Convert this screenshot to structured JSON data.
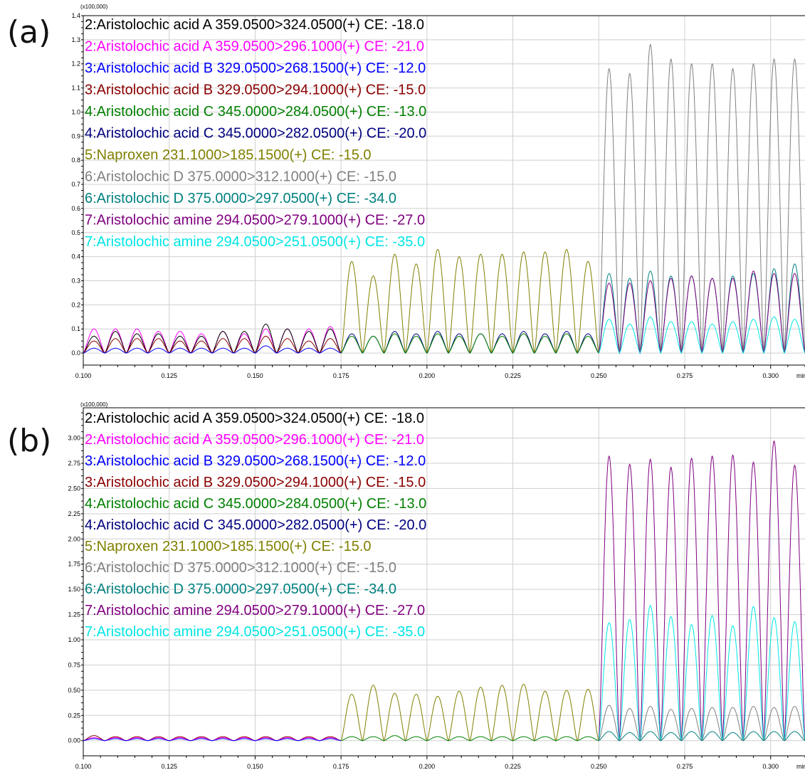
{
  "figure": {
    "panel_labels": [
      "(a)",
      "(b)"
    ],
    "x_unit_label": "min",
    "y_scale_note": "(x100,000)"
  },
  "legend": [
    {
      "id": "aaa-324",
      "label": "2:Aristolochic acid A 359.0500>324.0500(+) CE: -18.0",
      "color": "#000000"
    },
    {
      "id": "aaa-296",
      "label": "2:Aristolochic acid A 359.0500>296.1000(+) CE: -21.0",
      "color": "#ff00ff"
    },
    {
      "id": "aab-268",
      "label": "3:Aristolochic acid B 329.0500>268.1500(+) CE: -12.0",
      "color": "#0000ff"
    },
    {
      "id": "aab-294",
      "label": "3:Aristolochic acid B 329.0500>294.1000(+) CE: -15.0",
      "color": "#8b0000"
    },
    {
      "id": "aac-284",
      "label": "4:Aristolochic acid C 345.0000>284.0500(+) CE: -13.0",
      "color": "#008000"
    },
    {
      "id": "aac-282",
      "label": "4:Aristolochic acid C 345.0000>282.0500(+) CE: -20.0",
      "color": "#000080"
    },
    {
      "id": "nap-185",
      "label": "5:Naproxen 231.1000>185.1500(+) CE: -15.0",
      "color": "#808000"
    },
    {
      "id": "aad-312",
      "label": "6:Aristolochic D 375.0000>312.1000(+) CE: -15.0",
      "color": "#808080"
    },
    {
      "id": "aad-297",
      "label": "6:Aristolochic D 375.0000>297.0500(+) CE: -34.0",
      "color": "#008080"
    },
    {
      "id": "aam-279",
      "label": "7:Aristolochic amine 294.0500>279.1000(+) CE: -27.0",
      "color": "#800080"
    },
    {
      "id": "aam-251",
      "label": "7:Aristolochic amine 294.0500>251.0500(+) CE: -35.0",
      "color": "#00e5e5"
    }
  ],
  "chart_data": [
    {
      "panel": "(a)",
      "type": "line",
      "title": "",
      "xlabel": "min",
      "ylabel": "(x100,000)",
      "xlim": [
        0.1,
        0.31
      ],
      "ylim": [
        -0.05,
        1.4
      ],
      "x_ticks": [
        "0.100",
        "0.125",
        "0.150",
        "0.175",
        "0.200",
        "0.225",
        "0.250",
        "0.275",
        "0.300"
      ],
      "y_ticks": [
        "0.0",
        "0.1",
        "0.2",
        "0.3",
        "0.4",
        "0.5",
        "0.6",
        "0.7",
        "0.8",
        "0.9",
        "1.0",
        "1.1",
        "1.2",
        "1.3",
        "1.4"
      ],
      "grid": true,
      "legend_position": "top-left",
      "segments": [
        {
          "x_start": 0.1,
          "x_end": 0.175,
          "peak_count": 12,
          "series": [
            {
              "id": "aaa-296",
              "peak_heights": [
                0.1,
                0.1,
                0.1,
                0.09,
                0.09,
                0.08,
                0.09,
                0.08,
                0.1,
                0.1,
                0.1,
                0.11
              ]
            },
            {
              "id": "aaa-324",
              "peak_heights": [
                0.07,
                0.09,
                0.08,
                0.08,
                0.07,
                0.07,
                0.09,
                0.09,
                0.12,
                0.1,
                0.09,
                0.1
              ]
            },
            {
              "id": "aab-294",
              "peak_heights": [
                0.05,
                0.06,
                0.06,
                0.06,
                0.05,
                0.05,
                0.06,
                0.06,
                0.07,
                0.06,
                0.05,
                0.06
              ]
            },
            {
              "id": "aab-268",
              "peak_heights": [
                0.02,
                0.02,
                0.02,
                0.02,
                0.02,
                0.02,
                0.02,
                0.02,
                0.03,
                0.02,
                0.02,
                0.02
              ]
            }
          ]
        },
        {
          "x_start": 0.175,
          "x_end": 0.25,
          "peak_count": 12,
          "series": [
            {
              "id": "nap-185",
              "peak_heights": [
                0.38,
                0.32,
                0.41,
                0.37,
                0.43,
                0.4,
                0.41,
                0.41,
                0.42,
                0.42,
                0.43,
                0.38
              ]
            },
            {
              "id": "aac-282",
              "peak_heights": [
                0.08,
                0.07,
                0.09,
                0.08,
                0.09,
                0.08,
                0.08,
                0.08,
                0.09,
                0.08,
                0.09,
                0.08
              ]
            },
            {
              "id": "aac-284",
              "peak_heights": [
                0.07,
                0.07,
                0.08,
                0.07,
                0.08,
                0.07,
                0.08,
                0.07,
                0.08,
                0.07,
                0.08,
                0.07
              ]
            }
          ]
        },
        {
          "x_start": 0.25,
          "x_end": 0.31,
          "peak_count": 10,
          "series": [
            {
              "id": "aad-312",
              "peak_heights": [
                1.18,
                1.16,
                1.28,
                1.22,
                1.2,
                1.2,
                1.18,
                1.2,
                1.22,
                1.22
              ]
            },
            {
              "id": "aad-297",
              "peak_heights": [
                0.33,
                0.31,
                0.34,
                0.32,
                0.32,
                0.31,
                0.32,
                0.33,
                0.35,
                0.37
              ]
            },
            {
              "id": "aam-279",
              "peak_heights": [
                0.29,
                0.29,
                0.3,
                0.31,
                0.32,
                0.31,
                0.31,
                0.34,
                0.33,
                0.33
              ]
            },
            {
              "id": "aam-251",
              "peak_heights": [
                0.14,
                0.12,
                0.15,
                0.13,
                0.13,
                0.12,
                0.13,
                0.14,
                0.15,
                0.14
              ]
            }
          ]
        }
      ]
    },
    {
      "panel": "(b)",
      "type": "line",
      "title": "",
      "xlabel": "min",
      "ylabel": "(x100,000)",
      "xlim": [
        0.1,
        0.31
      ],
      "ylim": [
        -0.15,
        3.3
      ],
      "x_ticks": [
        "0.100",
        "0.125",
        "0.150",
        "0.175",
        "0.200",
        "0.225",
        "0.250",
        "0.275",
        "0.300"
      ],
      "y_ticks": [
        "0.00",
        "0.25",
        "0.50",
        "0.75",
        "1.00",
        "1.25",
        "1.50",
        "1.75",
        "2.00",
        "2.25",
        "2.50",
        "2.75",
        "3.00"
      ],
      "grid": true,
      "legend_position": "top-left",
      "segments": [
        {
          "x_start": 0.1,
          "x_end": 0.175,
          "peak_count": 12,
          "series": [
            {
              "id": "aab-294",
              "peak_heights": [
                0.05,
                0.04,
                0.04,
                0.04,
                0.04,
                0.04,
                0.04,
                0.04,
                0.04,
                0.04,
                0.04,
                0.04
              ]
            },
            {
              "id": "aaa-296",
              "peak_heights": [
                0.03,
                0.03,
                0.03,
                0.03,
                0.03,
                0.03,
                0.03,
                0.03,
                0.03,
                0.03,
                0.03,
                0.03
              ]
            },
            {
              "id": "aab-268",
              "peak_heights": [
                0.02,
                0.02,
                0.02,
                0.02,
                0.02,
                0.02,
                0.02,
                0.02,
                0.02,
                0.02,
                0.02,
                0.02
              ]
            }
          ]
        },
        {
          "x_start": 0.175,
          "x_end": 0.25,
          "peak_count": 12,
          "series": [
            {
              "id": "nap-185",
              "peak_heights": [
                0.46,
                0.55,
                0.47,
                0.46,
                0.44,
                0.49,
                0.53,
                0.55,
                0.56,
                0.49,
                0.5,
                0.51
              ]
            },
            {
              "id": "aac-284",
              "peak_heights": [
                0.04,
                0.04,
                0.05,
                0.04,
                0.04,
                0.04,
                0.04,
                0.04,
                0.04,
                0.04,
                0.04,
                0.04
              ]
            }
          ]
        },
        {
          "x_start": 0.25,
          "x_end": 0.31,
          "peak_count": 10,
          "series": [
            {
              "id": "aam-279",
              "peak_heights": [
                2.82,
                2.74,
                2.79,
                2.71,
                2.8,
                2.82,
                2.83,
                2.76,
                2.97,
                2.73
              ]
            },
            {
              "id": "aam-251",
              "peak_heights": [
                1.17,
                1.2,
                1.34,
                1.23,
                1.15,
                1.24,
                1.14,
                1.33,
                1.22,
                1.18
              ]
            },
            {
              "id": "aad-312",
              "peak_heights": [
                0.35,
                0.32,
                0.34,
                0.31,
                0.32,
                0.33,
                0.33,
                0.34,
                0.33,
                0.34
              ]
            },
            {
              "id": "aad-297",
              "peak_heights": [
                0.09,
                0.08,
                0.09,
                0.08,
                0.09,
                0.09,
                0.08,
                0.09,
                0.09,
                0.09
              ]
            }
          ]
        }
      ]
    }
  ]
}
